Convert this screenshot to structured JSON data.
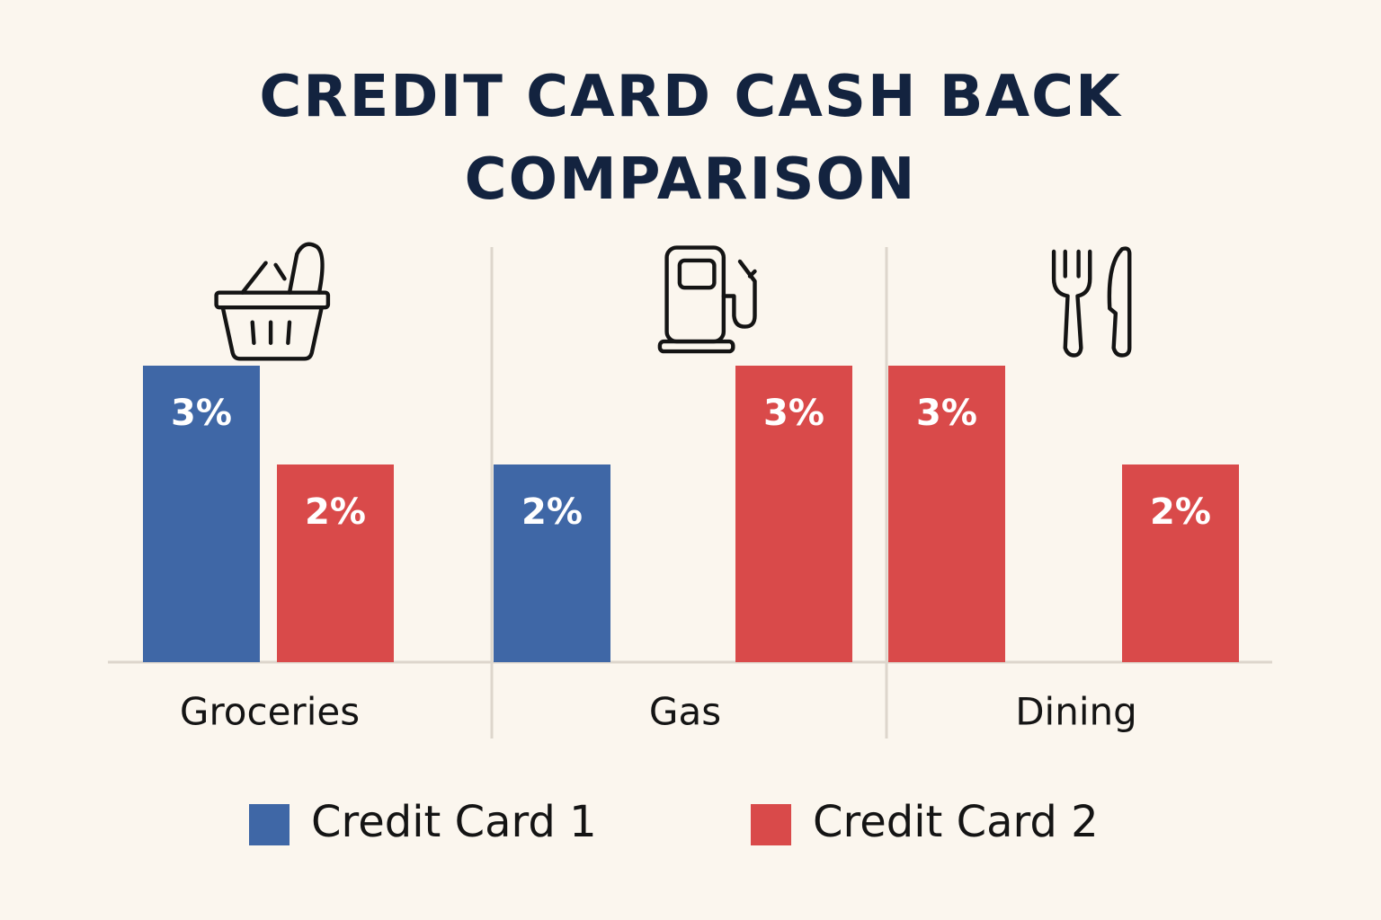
{
  "chart_data": {
    "type": "bar",
    "title": "CREDIT CARD CASH BACK COMPARISON",
    "categories": [
      "Groceries",
      "Gas",
      "Dining"
    ],
    "series": [
      {
        "name": "Credit Card 1",
        "color": "#3f67a6",
        "colors": [
          "#3f67a6",
          "#3f67a6",
          "#d94a4a"
        ],
        "values": [
          3,
          2,
          3
        ],
        "value_labels": [
          "3%",
          "2%",
          "3%"
        ]
      },
      {
        "name": "Credit Card 2",
        "color": "#d94a4a",
        "values": [
          2,
          3,
          2
        ],
        "value_labels": [
          "2%",
          "3%",
          "2%"
        ]
      }
    ]
  }
}
